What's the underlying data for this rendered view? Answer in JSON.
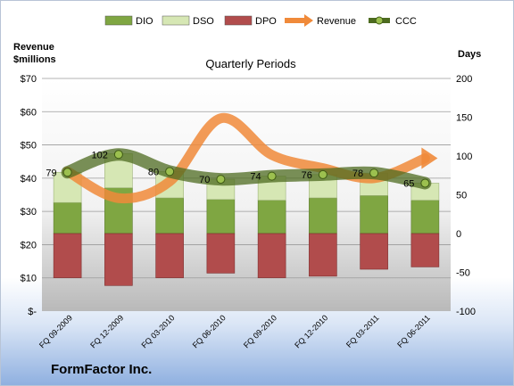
{
  "company": "FormFactor Inc.",
  "chart_data": {
    "type": "bar",
    "title": "Quarterly Periods",
    "left_axis": {
      "label_line1": "Revenue",
      "label_line2": "$millions",
      "ticks": [
        "$-",
        "$10",
        "$20",
        "$30",
        "$40",
        "$50",
        "$60",
        "$70"
      ],
      "range": [
        0,
        70
      ]
    },
    "right_axis": {
      "label": "Days",
      "ticks": [
        "-100",
        "-50",
        "0",
        "50",
        "100",
        "150",
        "200"
      ],
      "range": [
        -100,
        200
      ]
    },
    "categories": [
      "FQ 09-2009",
      "FQ 12-2009",
      "FQ 03-2010",
      "FQ 06-2010",
      "FQ 09-2010",
      "FQ 12-2010",
      "FQ 03-2011",
      "FQ 06-2011"
    ],
    "series": [
      {
        "name": "DIO",
        "kind": "stacked-bar",
        "axis": "days",
        "values": [
          40,
          59,
          46,
          44,
          43,
          46,
          49,
          43
        ],
        "color": "#7fa642"
      },
      {
        "name": "DSO",
        "kind": "stacked-bar",
        "axis": "days",
        "values": [
          39,
          44,
          34,
          26,
          31,
          30,
          29,
          22
        ],
        "color": "#d6e7b4"
      },
      {
        "name": "DPO",
        "kind": "negative-bar",
        "axis": "days",
        "values": [
          -57,
          -67,
          -57,
          -51,
          -57,
          -55,
          -46,
          -43
        ],
        "color": "#b14c4c"
      },
      {
        "name": "Revenue",
        "kind": "line",
        "axis": "revenue",
        "values": [
          42,
          34,
          39,
          58,
          47,
          43,
          40,
          46
        ],
        "color": "#f08a3a"
      },
      {
        "name": "CCC",
        "kind": "line",
        "axis": "days",
        "values": [
          79,
          102,
          80,
          70,
          74,
          76,
          78,
          65
        ],
        "labels": [
          "79",
          "102",
          "80",
          "70",
          "74",
          "76",
          "78",
          "65"
        ],
        "color": "#5f7f2a"
      }
    ],
    "legend": [
      "DIO",
      "DSO",
      "DPO",
      "Revenue",
      "CCC"
    ],
    "legend_position": "top",
    "grid": true
  }
}
